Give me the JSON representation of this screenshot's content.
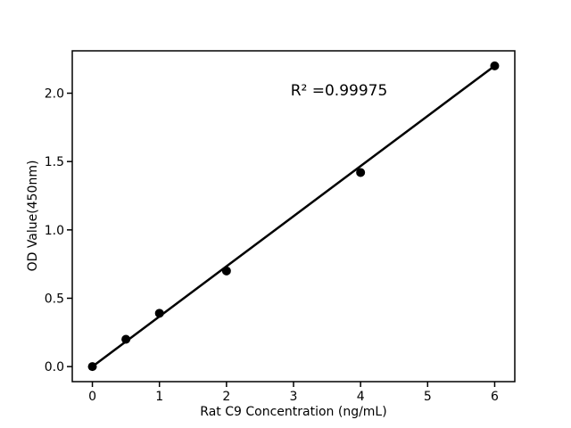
{
  "chart_data": {
    "type": "scatter",
    "title": "",
    "xlabel": "Rat C9 Concentration (ng/mL)",
    "ylabel": "OD Value(450nm)",
    "annotation": "R² =0.99975",
    "r_squared": 0.99975,
    "x": [
      0,
      0.5,
      1,
      2,
      4,
      6
    ],
    "y": [
      0.0,
      0.2,
      0.39,
      0.7,
      1.42,
      2.2
    ],
    "fit_line": {
      "x1": 0,
      "y1": 0.0,
      "x2": 6,
      "y2": 2.2
    },
    "xticks": [
      0,
      1,
      2,
      3,
      4,
      5,
      6
    ],
    "xtick_labels": [
      "0",
      "1",
      "2",
      "3",
      "4",
      "5",
      "6"
    ],
    "yticks": [
      0.0,
      0.5,
      1.0,
      1.5,
      2.0
    ],
    "ytick_labels": [
      "0.0",
      "0.5",
      "1.0",
      "1.5",
      "2.0"
    ],
    "xlim": [
      -0.3,
      6.3
    ],
    "ylim": [
      -0.11,
      2.31
    ],
    "grid": false,
    "legend": null,
    "marker_color": "#000000",
    "line_color": "#000000",
    "axis_color": "#000000",
    "background": "#ffffff"
  }
}
